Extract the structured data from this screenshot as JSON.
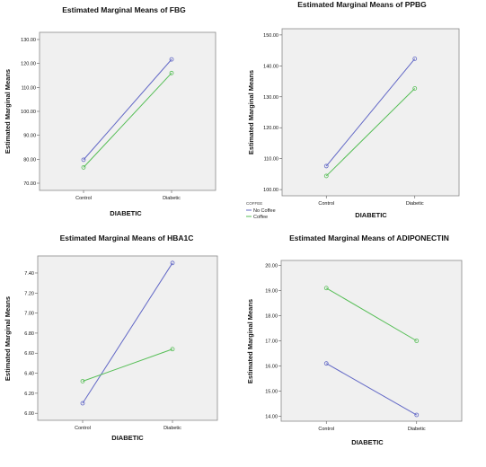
{
  "legend": {
    "title": "COFFEE",
    "entries": [
      "No Coffee",
      "Coffee"
    ]
  },
  "colors": {
    "no_coffee": "#6268C6",
    "coffee": "#56BE56",
    "plot_background": "#F0F0F0",
    "frame": "#8A8A8A"
  },
  "chart_data": [
    {
      "type": "line",
      "title": "Estimated Marginal Means of FBG",
      "xlabel": "DIABETIC",
      "ylabel": "Estimated Marginal Means",
      "categories": [
        "Control",
        "Diabetic"
      ],
      "ylim": [
        67,
        133
      ],
      "yticks": [
        "70.00",
        "80.00",
        "90.00",
        "100.00",
        "110.00",
        "120.00",
        "130.00"
      ],
      "grid": false,
      "legend": "none",
      "series": [
        {
          "name": "No Coffee",
          "values": [
            79.8,
            121.7
          ]
        },
        {
          "name": "Coffee",
          "values": [
            76.6,
            116.0
          ]
        }
      ]
    },
    {
      "type": "line",
      "title": "Estimated Marginal Means of PPBG",
      "xlabel": "DIABETIC",
      "ylabel": "Estimated Marginal Means",
      "categories": [
        "Control",
        "Diabetic"
      ],
      "ylim": [
        98,
        152
      ],
      "yticks": [
        "100.00",
        "110.00",
        "120.00",
        "130.00",
        "140.00",
        "150.00"
      ],
      "grid": false,
      "legend": "bottom",
      "series": [
        {
          "name": "No Coffee",
          "values": [
            107.6,
            142.3
          ]
        },
        {
          "name": "Coffee",
          "values": [
            104.4,
            132.7
          ]
        }
      ]
    },
    {
      "type": "line",
      "title": "Estimated Marginal Means of HBA1C",
      "xlabel": "DIABETIC",
      "ylabel": "Estimated Marginal Means",
      "categories": [
        "Control",
        "Diabetic"
      ],
      "ylim": [
        5.93,
        7.57
      ],
      "yticks": [
        "6.00",
        "6.20",
        "6.40",
        "6.60",
        "6.80",
        "7.00",
        "7.20",
        "7.40"
      ],
      "grid": false,
      "legend": "none",
      "series": [
        {
          "name": "No Coffee",
          "values": [
            6.1,
            7.5
          ]
        },
        {
          "name": "Coffee",
          "values": [
            6.32,
            6.64
          ]
        }
      ]
    },
    {
      "type": "line",
      "title": "Estimated Marginal Means of ADIPONECTIN",
      "xlabel": "DIABETIC",
      "ylabel": "Estimated Marginal Means",
      "categories": [
        "Control",
        "Diabetic"
      ],
      "ylim": [
        13.8,
        20.2
      ],
      "yticks": [
        "14.00",
        "15.00",
        "16.00",
        "17.00",
        "18.00",
        "19.00",
        "20.00"
      ],
      "grid": false,
      "legend": "none",
      "series": [
        {
          "name": "No Coffee",
          "values": [
            16.1,
            14.05
          ]
        },
        {
          "name": "Coffee",
          "values": [
            19.1,
            17.0
          ]
        }
      ]
    }
  ]
}
